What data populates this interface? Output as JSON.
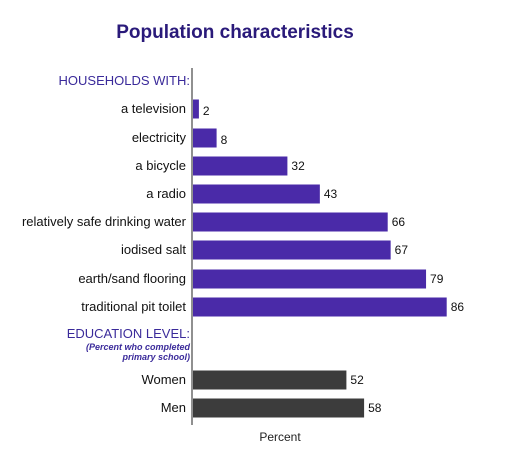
{
  "chart_data": {
    "type": "bar",
    "orientation": "horizontal",
    "title": "Population characteristics",
    "xlabel": "Percent",
    "xlim": [
      0,
      100
    ],
    "groups": [
      {
        "heading": "HOUSEHOLDS WITH:",
        "color": "#4a2aa8",
        "categories": [
          "a television",
          "electricity",
          "a bicycle",
          "a radio",
          "relatively safe drinking water",
          "iodised salt",
          "earth/sand flooring",
          "traditional pit toilet"
        ],
        "values": [
          2,
          8,
          32,
          43,
          66,
          67,
          79,
          86
        ]
      },
      {
        "heading": "EDUCATION LEVEL:",
        "note_line1": "(Percent who completed",
        "note_line2": "primary school)",
        "color": "#3c3c3c",
        "categories": [
          "Women",
          "Men"
        ],
        "values": [
          52,
          58
        ]
      }
    ]
  }
}
